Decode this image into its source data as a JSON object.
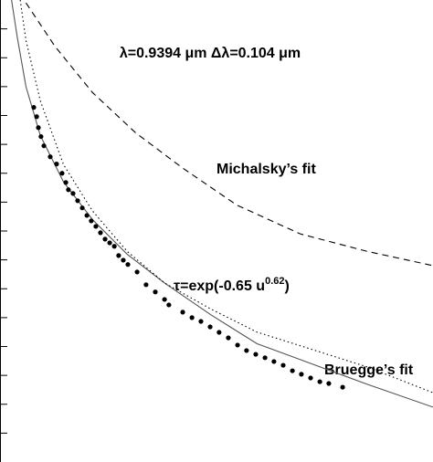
{
  "chart_data": {
    "type": "scatter",
    "title": "λ=0.9394 μm  Δλ=0.104 μm",
    "xlim": [
      0,
      15
    ],
    "ylim": [
      0,
      16
    ],
    "yticks": [
      1,
      2,
      3,
      4,
      5,
      6,
      7,
      8,
      9,
      10,
      11,
      12,
      13,
      14,
      15
    ],
    "series": [
      {
        "name": "Michalsky’s fit",
        "style": "dashed",
        "color": "#000000",
        "x": [
          0.9,
          1.9,
          3.2,
          4.7,
          6.3,
          8.2,
          10.4,
          12.7,
          15
        ],
        "values": [
          15.9,
          14.4,
          12.8,
          11.4,
          10.2,
          8.9,
          7.9,
          7.3,
          6.8
        ]
      },
      {
        "name": "Bruegge’s fit",
        "style": "solid",
        "color": "#555555",
        "x": [
          0.4,
          0.6,
          0.9,
          1.4,
          2.2,
          3.2,
          4.4,
          5.7,
          7.3,
          8.9,
          10.8,
          12.7,
          15
        ],
        "values": [
          16.0,
          14.7,
          13.0,
          11.3,
          9.7,
          8.4,
          7.2,
          6.2,
          5.1,
          4.1,
          3.4,
          2.7,
          1.9
        ]
      },
      {
        "style": "dotted",
        "color": "#000000",
        "x": [
          0.7,
          0.9,
          1.4,
          2.2,
          3.2,
          4.4,
          5.7,
          7.3,
          8.9,
          10.8,
          12.7,
          15
        ],
        "values": [
          16.0,
          14.6,
          12.5,
          10.3,
          8.7,
          7.3,
          6.2,
          5.3,
          4.5,
          3.9,
          3.3,
          2.4
        ]
      },
      {
        "style": "points",
        "color": "#000000",
        "x": [
          1.17,
          1.27,
          1.33,
          1.42,
          1.52,
          1.74,
          1.96,
          2.15,
          2.28,
          2.37,
          2.53,
          2.69,
          2.85,
          3.01,
          3.16,
          3.32,
          3.48,
          3.64,
          3.8,
          3.96,
          4.11,
          4.27,
          4.43,
          4.75,
          5.06,
          5.38,
          5.7,
          5.85,
          6.33,
          6.65,
          6.96,
          7.28,
          7.59,
          7.91,
          8.23,
          8.54,
          8.86,
          9.18,
          9.49,
          9.81,
          10.13,
          10.44,
          10.76,
          11.08,
          11.39,
          11.87
        ],
        "values": [
          12.28,
          11.96,
          11.58,
          11.27,
          10.95,
          10.57,
          10.32,
          10.0,
          9.68,
          9.43,
          9.3,
          9.05,
          8.8,
          8.54,
          8.35,
          8.16,
          7.94,
          7.72,
          7.59,
          7.47,
          7.15,
          6.99,
          6.84,
          6.58,
          6.14,
          5.89,
          5.63,
          5.44,
          5.19,
          5.0,
          4.87,
          4.68,
          4.49,
          4.3,
          4.05,
          3.86,
          3.73,
          3.61,
          3.48,
          3.35,
          3.16,
          3.04,
          2.91,
          2.78,
          2.72,
          2.59
        ]
      }
    ],
    "annotation": {
      "text": "τ=exp(-0.65 u",
      "superscript": "0.62",
      "close": ")"
    }
  }
}
